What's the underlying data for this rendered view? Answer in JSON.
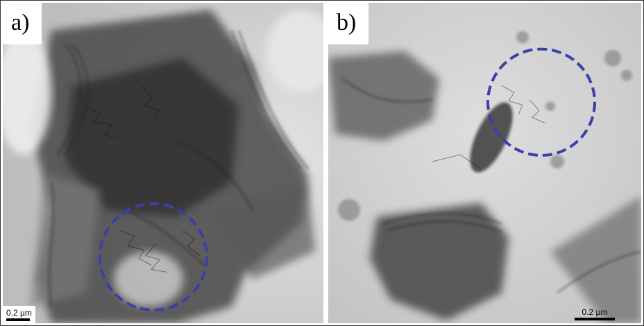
{
  "figure": {
    "panels": [
      {
        "label": "a)",
        "scale_bar": "0.2 µm",
        "highlight_color": "#3b3fa6"
      },
      {
        "label": "b)",
        "scale_bar": "0.2 µm",
        "highlight_color": "#3b3fa6"
      }
    ]
  }
}
